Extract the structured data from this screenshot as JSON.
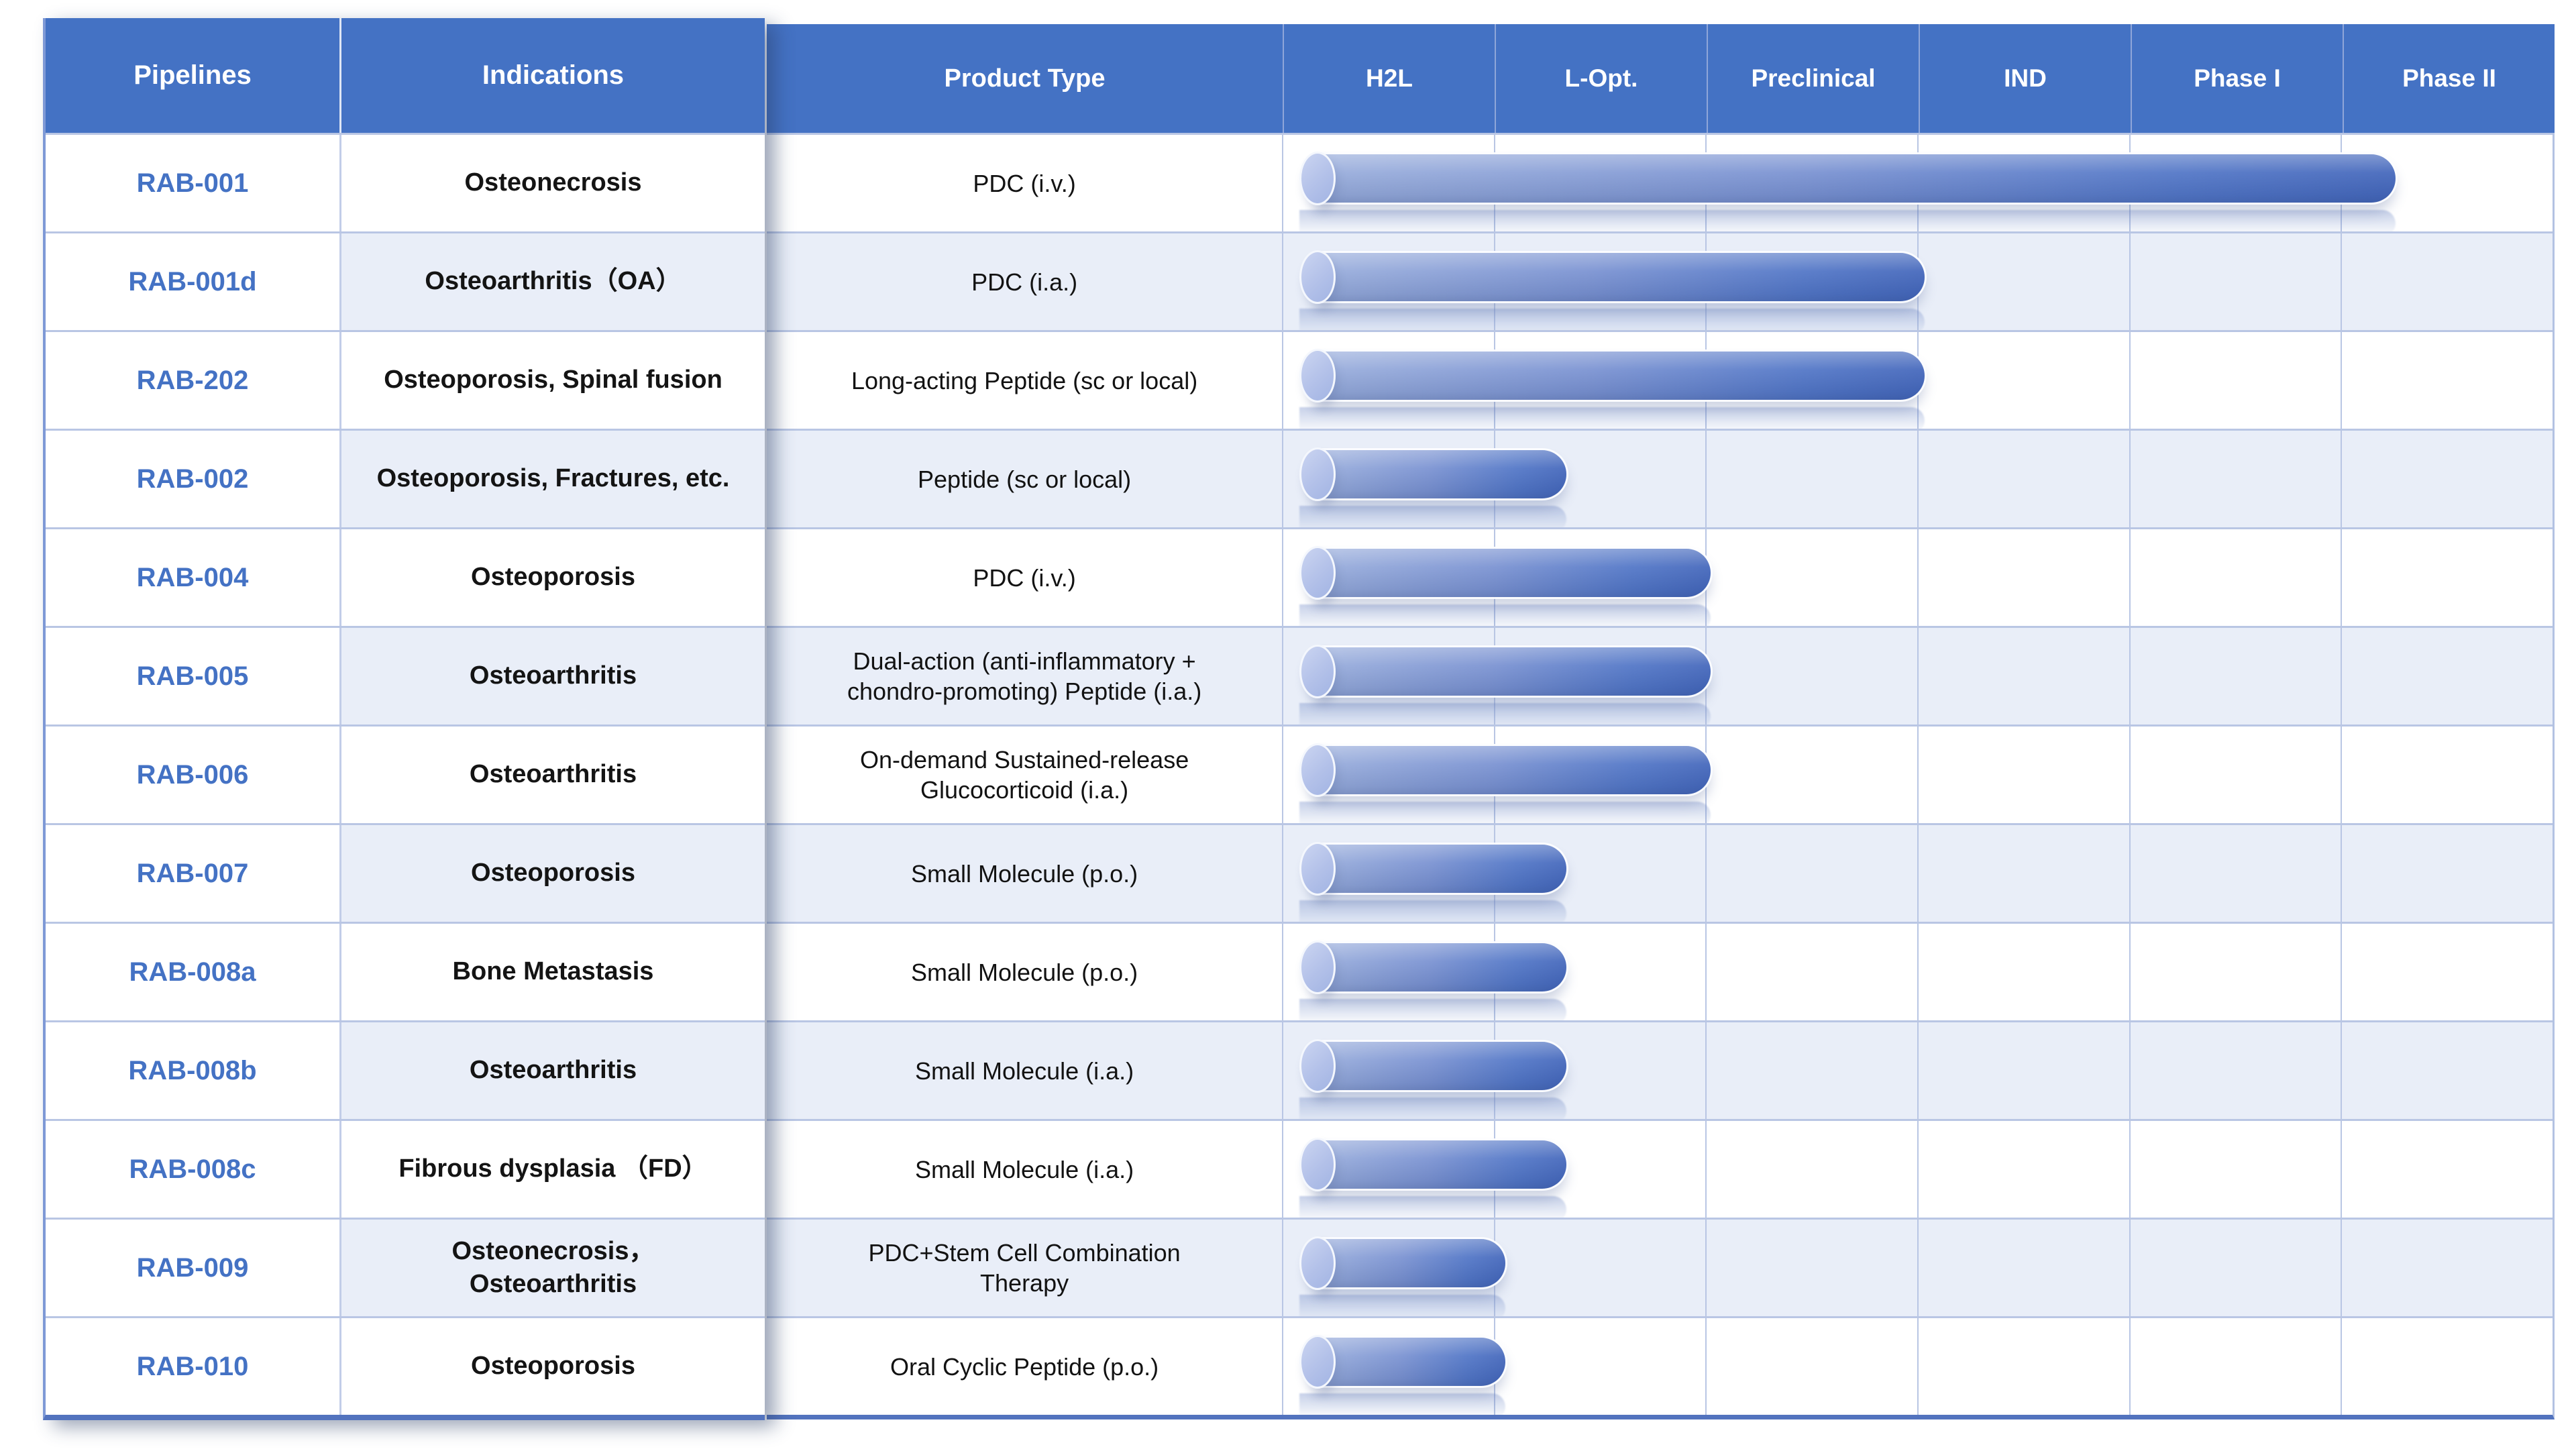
{
  "colors": {
    "header_bg": "#4472C4",
    "pipeline_text": "#4472C4",
    "row_stripe": "#E9EEF8",
    "grid_line": "#B9C6E4",
    "bar_gradient_start": "#9AAEDC",
    "bar_gradient_end": "#4568BC",
    "bar_cap": "#B3C1E9",
    "table_bottom_border": "#5273BE"
  },
  "left_table": {
    "headers": [
      "Pipelines",
      "Indications"
    ],
    "rows": [
      {
        "pipeline": "RAB-001",
        "indication": "Osteonecrosis"
      },
      {
        "pipeline": "RAB-001d",
        "indication": "Osteoarthritis（OA）"
      },
      {
        "pipeline": "RAB-202",
        "indication": "Osteoporosis, Spinal fusion"
      },
      {
        "pipeline": "RAB-002",
        "indication": "Osteoporosis, Fractures, etc."
      },
      {
        "pipeline": "RAB-004",
        "indication": "Osteoporosis"
      },
      {
        "pipeline": "RAB-005",
        "indication": "Osteoarthritis"
      },
      {
        "pipeline": "RAB-006",
        "indication": "Osteoarthritis"
      },
      {
        "pipeline": "RAB-007",
        "indication": "Osteoporosis"
      },
      {
        "pipeline": "RAB-008a",
        "indication": "Bone Metastasis"
      },
      {
        "pipeline": "RAB-008b",
        "indication": "Osteoarthritis"
      },
      {
        "pipeline": "RAB-008c",
        "indication": "Fibrous dysplasia （FD）"
      },
      {
        "pipeline": "RAB-009",
        "indication": "Osteonecrosis，\nOsteoarthritis"
      },
      {
        "pipeline": "RAB-010",
        "indication": "Osteoporosis"
      }
    ]
  },
  "main_table": {
    "product_header": "Product Type",
    "stage_headers": [
      "H2L",
      "L-Opt.",
      "Preclinical",
      "IND",
      "Phase I",
      "Phase II"
    ],
    "rows": [
      {
        "product": "PDC (i.v.)"
      },
      {
        "product": "PDC  (i.a.)"
      },
      {
        "product": "Long-acting Peptide (sc or local)"
      },
      {
        "product": "Peptide (sc or local)"
      },
      {
        "product": "PDC (i.v.)"
      },
      {
        "product": "Dual-action (anti-inflammatory +\nchondro-promoting) Peptide (i.a.)"
      },
      {
        "product": "On-demand Sustained-release\nGlucocorticoid  (i.a.)"
      },
      {
        "product": "Small Molecule (p.o.)"
      },
      {
        "product": "Small Molecule (p.o.)"
      },
      {
        "product": "Small Molecule (i.a.)"
      },
      {
        "product": "Small Molecule (i.a.)"
      },
      {
        "product": "PDC+Stem Cell Combination\nTherapy"
      },
      {
        "product": "Oral Cyclic Peptide (p.o.)"
      }
    ]
  },
  "chart_data": {
    "type": "bar",
    "orientation": "horizontal",
    "categories": [
      "RAB-001",
      "RAB-001d",
      "RAB-202",
      "RAB-002",
      "RAB-004",
      "RAB-005",
      "RAB-006",
      "RAB-007",
      "RAB-008a",
      "RAB-008b",
      "RAB-008c",
      "RAB-009",
      "RAB-010"
    ],
    "values": [
      5.25,
      3.03,
      3.03,
      1.34,
      2.02,
      2.02,
      2.02,
      1.34,
      1.34,
      1.34,
      1.34,
      1.05,
      1.05
    ],
    "value_units": "development stages completed (1 = H2L, 2 = L-Opt., 3 = Preclinical, 4 = IND, 5 = Phase I, 6 = Phase II)",
    "x_axis_stages": [
      "H2L",
      "L-Opt.",
      "Preclinical",
      "IND",
      "Phase I",
      "Phase II"
    ],
    "xlim": [
      0,
      6
    ],
    "grid": true,
    "legend": false
  }
}
